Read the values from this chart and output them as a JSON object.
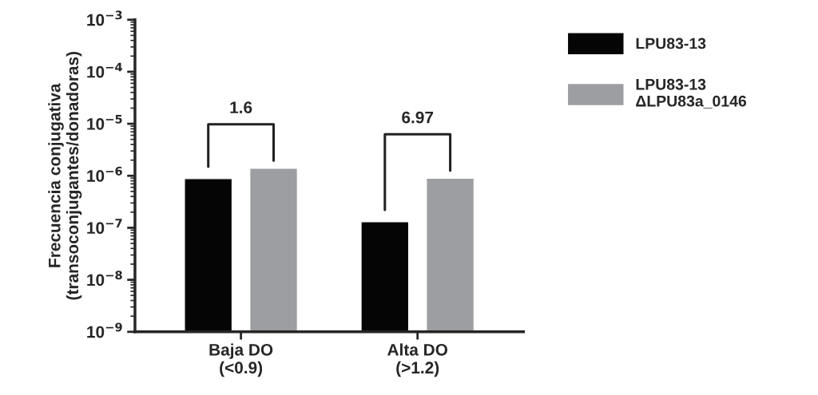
{
  "chart_data": {
    "type": "bar",
    "ylabel": "Frecuencia conjugativa\n(transoconjugantes/donadoras)",
    "categories": [
      "Baja DO\n(<0.9)",
      "Alta DO\n(>1.2)"
    ],
    "series": [
      {
        "name": "LPU83-13",
        "color": "#050505",
        "values": [
          8.8e-07,
          1.3e-07
        ]
      },
      {
        "name": "LPU83-13\nΔLPU83a_0146",
        "color": "#9d9ea2",
        "values": [
          1.4e-06,
          9e-07
        ]
      }
    ],
    "log": "y",
    "ylim": [
      1e-09,
      0.001
    ],
    "yticks": [
      {
        "value": 1e-09,
        "label": "10$^{−9}$"
      },
      {
        "value": 1e-08,
        "label": "10$^{−8}$"
      },
      {
        "value": 1e-07,
        "label": "10$^{−7}$"
      },
      {
        "value": 1e-06,
        "label": "10$^{−6}$"
      },
      {
        "value": 1e-05,
        "label": "10$^{−5}$"
      },
      {
        "value": 0.0001,
        "label": "10$^{−4}$"
      },
      {
        "value": 0.001,
        "label": "10$^{−3}$"
      }
    ],
    "annotations": [
      "1.6",
      "6.97"
    ],
    "legend": "top right",
    "grid": false
  }
}
